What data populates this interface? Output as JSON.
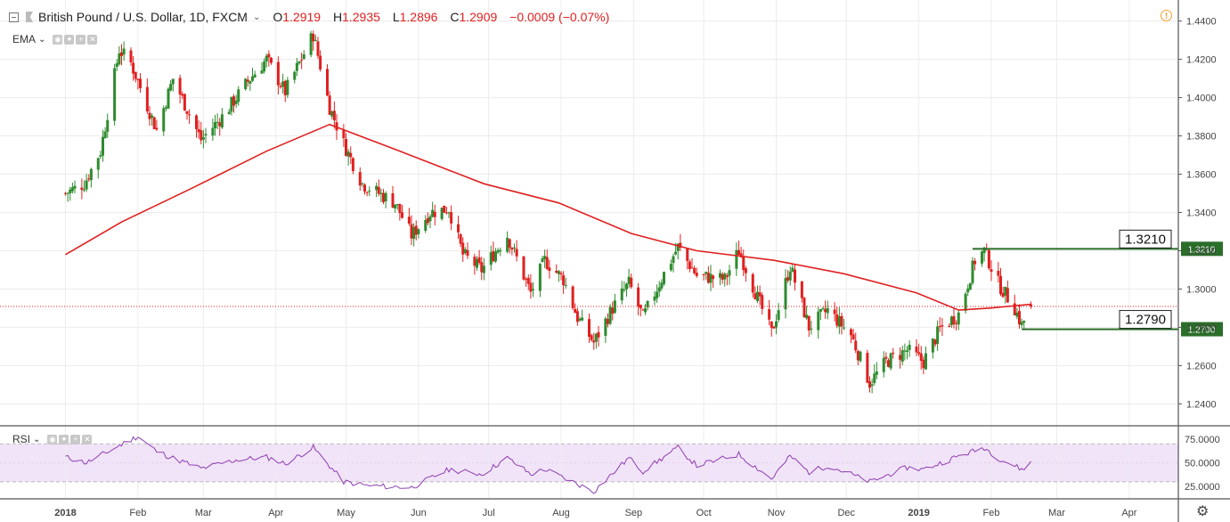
{
  "header": {
    "symbol_title": "British Pound / U.S. Dollar, 1D, FXCM",
    "open_label": "O",
    "open": "1.2919",
    "high_label": "H",
    "high": "1.2935",
    "low_label": "L",
    "low": "1.2896",
    "close_label": "C",
    "close": "1.2909",
    "change": "−0.0009 (−0.07%)"
  },
  "indicators": {
    "ema_label": "EMA",
    "rsi_label": "RSI"
  },
  "icons": [
    "collapse-icon",
    "flag-icon",
    "alert-icon",
    "eye-icon",
    "settings-icon",
    "plus-icon",
    "close-icon",
    "gear-icon"
  ],
  "colors": {
    "up": "#2e8b2e",
    "down": "#e02020",
    "ema": "#e02020",
    "rsi_line": "#8e3fb0",
    "rsi_band": "#f1e3f8",
    "level_line": "#2a6e2a"
  },
  "chart_data": [
    {
      "type": "candlestick",
      "title": "British Pound / U.S. Dollar, 1D, FXCM",
      "x_axis_labels": [
        "2018",
        "Feb",
        "Mar",
        "Apr",
        "May",
        "Jun",
        "Jul",
        "Aug",
        "Sep",
        "Oct",
        "Nov",
        "Dec",
        "2019",
        "Feb",
        "Mar",
        "Apr"
      ],
      "y_ticks": [
        "1.4400",
        "1.4200",
        "1.4000",
        "1.3800",
        "1.3600",
        "1.3400",
        "1.3200",
        "1.3000",
        "1.2800",
        "1.2600",
        "1.2400"
      ],
      "ylim": [
        1.229,
        1.451
      ],
      "grid": true,
      "last_price": 1.2909,
      "ohlc_last": {
        "open": 1.2919,
        "high": 1.2935,
        "low": 1.2896,
        "close": 1.2909,
        "change": -0.0009,
        "change_pct": -0.07
      },
      "close_path": [
        {
          "x": "2018-01-01",
          "y": 1.35
        },
        {
          "x": "2018-01-09",
          "y": 1.355
        },
        {
          "x": "2018-01-16",
          "y": 1.372
        },
        {
          "x": "2018-01-24",
          "y": 1.425
        },
        {
          "x": "2018-01-29",
          "y": 1.418
        },
        {
          "x": "2018-02-09",
          "y": 1.383
        },
        {
          "x": "2018-02-16",
          "y": 1.41
        },
        {
          "x": "2018-02-28",
          "y": 1.378
        },
        {
          "x": "2018-03-09",
          "y": 1.39
        },
        {
          "x": "2018-03-21",
          "y": 1.41
        },
        {
          "x": "2018-03-28",
          "y": 1.42
        },
        {
          "x": "2018-04-05",
          "y": 1.403
        },
        {
          "x": "2018-04-17",
          "y": 1.433
        },
        {
          "x": "2018-04-24",
          "y": 1.395
        },
        {
          "x": "2018-04-30",
          "y": 1.376
        },
        {
          "x": "2018-05-08",
          "y": 1.355
        },
        {
          "x": "2018-05-22",
          "y": 1.345
        },
        {
          "x": "2018-05-29",
          "y": 1.328
        },
        {
          "x": "2018-06-06",
          "y": 1.34
        },
        {
          "x": "2018-06-14",
          "y": 1.342
        },
        {
          "x": "2018-06-20",
          "y": 1.318
        },
        {
          "x": "2018-06-28",
          "y": 1.31
        },
        {
          "x": "2018-07-09",
          "y": 1.328
        },
        {
          "x": "2018-07-19",
          "y": 1.298
        },
        {
          "x": "2018-07-25",
          "y": 1.315
        },
        {
          "x": "2018-08-02",
          "y": 1.305
        },
        {
          "x": "2018-08-08",
          "y": 1.285
        },
        {
          "x": "2018-08-15",
          "y": 1.272
        },
        {
          "x": "2018-08-23",
          "y": 1.29
        },
        {
          "x": "2018-08-30",
          "y": 1.303
        },
        {
          "x": "2018-09-05",
          "y": 1.285
        },
        {
          "x": "2018-09-14",
          "y": 1.308
        },
        {
          "x": "2018-09-20",
          "y": 1.322
        },
        {
          "x": "2018-09-28",
          "y": 1.307
        },
        {
          "x": "2018-10-10",
          "y": 1.305
        },
        {
          "x": "2018-10-16",
          "y": 1.32
        },
        {
          "x": "2018-10-30",
          "y": 1.277
        },
        {
          "x": "2018-11-07",
          "y": 1.312
        },
        {
          "x": "2018-11-15",
          "y": 1.28
        },
        {
          "x": "2018-11-23",
          "y": 1.289
        },
        {
          "x": "2018-12-03",
          "y": 1.276
        },
        {
          "x": "2018-12-11",
          "y": 1.251
        },
        {
          "x": "2018-12-18",
          "y": 1.262
        },
        {
          "x": "2018-12-27",
          "y": 1.268
        },
        {
          "x": "2019-01-03",
          "y": 1.262
        },
        {
          "x": "2019-01-10",
          "y": 1.279
        },
        {
          "x": "2019-01-18",
          "y": 1.287
        },
        {
          "x": "2019-01-25",
          "y": 1.315
        },
        {
          "x": "2019-01-29",
          "y": 1.32
        },
        {
          "x": "2019-02-04",
          "y": 1.303
        },
        {
          "x": "2019-02-11",
          "y": 1.29
        },
        {
          "x": "2019-02-14",
          "y": 1.281
        },
        {
          "x": "2019-02-18",
          "y": 1.2909
        }
      ],
      "ema_path": [
        {
          "x": "2018-01-01",
          "y": 1.318
        },
        {
          "x": "2018-01-25",
          "y": 1.335
        },
        {
          "x": "2018-02-23",
          "y": 1.352
        },
        {
          "x": "2018-03-28",
          "y": 1.372
        },
        {
          "x": "2018-04-24",
          "y": 1.386
        },
        {
          "x": "2018-05-22",
          "y": 1.373
        },
        {
          "x": "2018-06-29",
          "y": 1.355
        },
        {
          "x": "2018-07-31",
          "y": 1.345
        },
        {
          "x": "2018-08-31",
          "y": 1.329
        },
        {
          "x": "2018-09-28",
          "y": 1.32
        },
        {
          "x": "2018-10-31",
          "y": 1.315
        },
        {
          "x": "2018-11-30",
          "y": 1.308
        },
        {
          "x": "2018-12-31",
          "y": 1.298
        },
        {
          "x": "2019-01-18",
          "y": 1.289
        },
        {
          "x": "2019-01-31",
          "y": 1.29
        },
        {
          "x": "2019-02-18",
          "y": 1.292
        }
      ],
      "levels": [
        {
          "value": 1.321,
          "label": "1.3210",
          "axis_label": "1.3210",
          "from": "2019-01-24"
        },
        {
          "value": 1.279,
          "label": "1.2790",
          "axis_label": "1.2790",
          "from": "2019-02-14"
        }
      ]
    },
    {
      "type": "line",
      "title": "RSI",
      "y_ticks": [
        "75.0000",
        "50.0000",
        "25.0000"
      ],
      "ylim": [
        13,
        88
      ],
      "band": [
        30,
        70
      ],
      "path": [
        {
          "x": "2018-01-01",
          "y": 56
        },
        {
          "x": "2018-01-10",
          "y": 50
        },
        {
          "x": "2018-01-24",
          "y": 68
        },
        {
          "x": "2018-02-01",
          "y": 78
        },
        {
          "x": "2018-02-09",
          "y": 62
        },
        {
          "x": "2018-02-16",
          "y": 55
        },
        {
          "x": "2018-02-28",
          "y": 44
        },
        {
          "x": "2018-03-15",
          "y": 53
        },
        {
          "x": "2018-03-28",
          "y": 56
        },
        {
          "x": "2018-04-05",
          "y": 49
        },
        {
          "x": "2018-04-17",
          "y": 66
        },
        {
          "x": "2018-04-30",
          "y": 30
        },
        {
          "x": "2018-05-10",
          "y": 26
        },
        {
          "x": "2018-05-29",
          "y": 24
        },
        {
          "x": "2018-06-14",
          "y": 43
        },
        {
          "x": "2018-06-28",
          "y": 38
        },
        {
          "x": "2018-07-09",
          "y": 55
        },
        {
          "x": "2018-07-19",
          "y": 38
        },
        {
          "x": "2018-07-25",
          "y": 43
        },
        {
          "x": "2018-08-15",
          "y": 20
        },
        {
          "x": "2018-08-30",
          "y": 55
        },
        {
          "x": "2018-09-05",
          "y": 41
        },
        {
          "x": "2018-09-20",
          "y": 66
        },
        {
          "x": "2018-09-28",
          "y": 47
        },
        {
          "x": "2018-10-16",
          "y": 59
        },
        {
          "x": "2018-10-30",
          "y": 33
        },
        {
          "x": "2018-11-07",
          "y": 57
        },
        {
          "x": "2018-11-15",
          "y": 40
        },
        {
          "x": "2018-11-23",
          "y": 47
        },
        {
          "x": "2018-12-03",
          "y": 38
        },
        {
          "x": "2018-12-11",
          "y": 30
        },
        {
          "x": "2018-12-27",
          "y": 45
        },
        {
          "x": "2019-01-03",
          "y": 43
        },
        {
          "x": "2019-01-18",
          "y": 57
        },
        {
          "x": "2019-01-29",
          "y": 66
        },
        {
          "x": "2019-02-04",
          "y": 55
        },
        {
          "x": "2019-02-14",
          "y": 43
        },
        {
          "x": "2019-02-18",
          "y": 50
        }
      ]
    }
  ]
}
